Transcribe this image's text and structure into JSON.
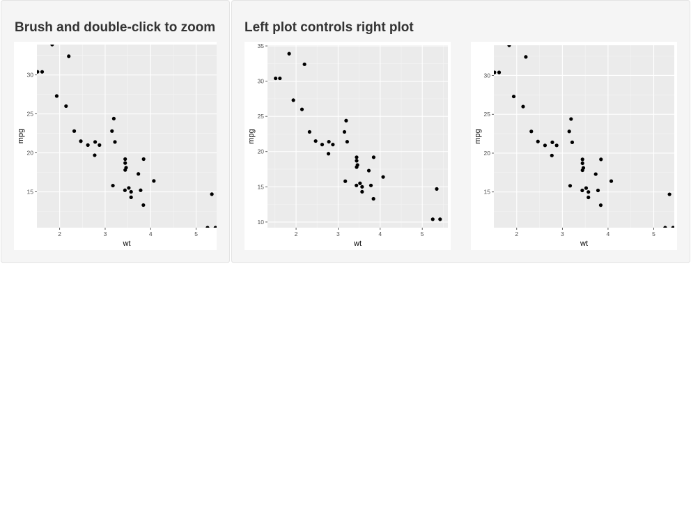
{
  "panels": [
    {
      "title": "Brush and double-click to zoom"
    },
    {
      "title": "Left plot controls right plot"
    }
  ],
  "chart_data": [
    {
      "type": "scatter",
      "title": "",
      "xlabel": "wt",
      "ylabel": "mpg",
      "xlim": [
        1.5,
        5.45
      ],
      "ylim": [
        10.4,
        33.9
      ],
      "xticks": [
        2,
        3,
        4,
        5
      ],
      "yticks": [
        15,
        20,
        25,
        30
      ],
      "grid": true
    },
    {
      "type": "scatter",
      "title": "",
      "xlabel": "wt",
      "ylabel": "mpg",
      "xlim": [
        1.32,
        5.61
      ],
      "ylim": [
        9.2,
        35.1
      ],
      "xticks": [
        2,
        3,
        4,
        5
      ],
      "yticks": [
        10,
        15,
        20,
        25,
        30,
        35
      ],
      "grid": true
    },
    {
      "type": "scatter",
      "title": "",
      "xlabel": "wt",
      "ylabel": "mpg",
      "xlim": [
        1.5,
        5.45
      ],
      "ylim": [
        10.4,
        33.9
      ],
      "xticks": [
        2,
        3,
        4,
        5
      ],
      "yticks": [
        15,
        20,
        25,
        30
      ],
      "grid": true
    }
  ],
  "points": [
    [
      2.62,
      21.0
    ],
    [
      2.875,
      21.0
    ],
    [
      2.32,
      22.8
    ],
    [
      3.215,
      21.4
    ],
    [
      3.44,
      18.7
    ],
    [
      3.46,
      18.1
    ],
    [
      3.57,
      14.3
    ],
    [
      3.19,
      24.4
    ],
    [
      3.15,
      22.8
    ],
    [
      3.44,
      19.2
    ],
    [
      3.44,
      17.8
    ],
    [
      4.07,
      16.4
    ],
    [
      3.73,
      17.3
    ],
    [
      3.78,
      15.2
    ],
    [
      5.25,
      10.4
    ],
    [
      5.424,
      10.4
    ],
    [
      5.345,
      14.7
    ],
    [
      2.2,
      32.4
    ],
    [
      1.615,
      30.4
    ],
    [
      1.835,
      33.9
    ],
    [
      2.465,
      21.5
    ],
    [
      3.52,
      15.5
    ],
    [
      3.435,
      15.2
    ],
    [
      3.84,
      13.3
    ],
    [
      3.845,
      19.2
    ],
    [
      1.935,
      27.3
    ],
    [
      2.14,
      26.0
    ],
    [
      1.513,
      30.4
    ],
    [
      3.17,
      15.8
    ],
    [
      2.77,
      19.7
    ],
    [
      3.57,
      15.0
    ],
    [
      2.78,
      21.4
    ]
  ]
}
